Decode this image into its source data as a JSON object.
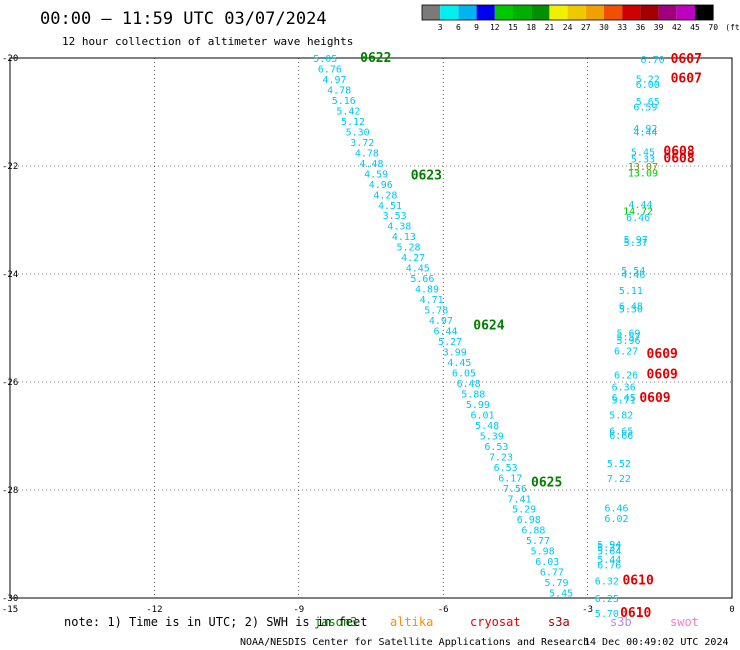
{
  "header": {
    "title": "00:00 — 11:59 UTC 03/07/2024",
    "subtitle": "12 hour collection of altimeter wave heights"
  },
  "colorbar": {
    "labels": [
      "3",
      "6",
      "9",
      "12",
      "15",
      "18",
      "21",
      "24",
      "27",
      "30",
      "33",
      "36",
      "39",
      "42",
      "45",
      "70"
    ],
    "unit": "(ft)",
    "colors": [
      "#7a7a7a",
      "#00f0f0",
      "#00b4f0",
      "#0000f0",
      "#00c800",
      "#00b000",
      "#009000",
      "#f0f000",
      "#f0c800",
      "#f0a000",
      "#f05000",
      "#d00000",
      "#a00000",
      "#a00080",
      "#c000c0",
      "#000000"
    ]
  },
  "footer": {
    "note": "note: 1) Time is in UTC; 2) SWH is in feet",
    "satellites": [
      {
        "name": "jason3",
        "color": "#008000"
      },
      {
        "name": "altika",
        "color": "#ff8c00"
      },
      {
        "name": "cryosat",
        "color": "#e00000"
      },
      {
        "name": "s3a",
        "color": "#a00000"
      },
      {
        "name": "s3b",
        "color": "#b48cdc"
      },
      {
        "name": "swot",
        "color": "#ff78c8"
      }
    ],
    "credit": "NOAA/NESDIS Center for Satellite Applications and Research",
    "generated": "14 Dec 00:49:02 UTC 2024"
  },
  "chart_data": {
    "type": "scatter",
    "xlim": [
      -15,
      0
    ],
    "ylim": [
      -30,
      -20
    ],
    "xticks": [
      -15,
      -12,
      -9,
      -6,
      -3,
      0
    ],
    "yticks": [
      -20,
      -22,
      -24,
      -26,
      -28,
      -30
    ],
    "xtick_labels": [
      "-15",
      "-12",
      "-9",
      "-6",
      "-3",
      "0"
    ],
    "ytick_labels": [
      "-20",
      "-22",
      "-24",
      "-26",
      "-28",
      "-30"
    ],
    "grid": true,
    "series": [
      {
        "name": "jason3",
        "color": "#00c8f0",
        "x_start": -8.45,
        "x_end": -3.55,
        "y_start": -20.0,
        "y_end": -29.9,
        "values": [
          "5.05",
          "6.76",
          "4.97",
          "4.78",
          "5.16",
          "5.42",
          "5.12",
          "5.30",
          "3.72",
          "4.78",
          "4.48",
          "4.59",
          "4.96",
          "4.28",
          "4.51",
          "3.53",
          "4.38",
          "4.13",
          "5.28",
          "4.27",
          "4.45",
          "5.66",
          "4.89",
          "4.71",
          "5.78",
          "4.97",
          "6.44",
          "5.27",
          "3.99",
          "4.45",
          "6.05",
          "6.48",
          "5.88",
          "5.99",
          "6.01",
          "5.48",
          "5.39",
          "6.53",
          "7.23",
          "6.53",
          "6.17",
          "7.56",
          "7.41",
          "5.29",
          "6.98",
          "6.88",
          "5.77",
          "5.98",
          "6.03",
          "6.77",
          "5.79",
          "5.45"
        ]
      },
      {
        "name": "cryosat",
        "color": "#00c8f0",
        "points": [
          {
            "x": -1.65,
            "y": -20.02,
            "v": "6.70"
          },
          {
            "x": -1.75,
            "y": -20.38,
            "v": "5.22"
          },
          {
            "x": -1.75,
            "y": -20.48,
            "v": "6.00"
          },
          {
            "x": -1.75,
            "y": -20.8,
            "v": "5.65"
          },
          {
            "x": -1.8,
            "y": -20.9,
            "v": "6.59"
          },
          {
            "x": -1.8,
            "y": -21.3,
            "v": "4.92"
          },
          {
            "x": -1.8,
            "y": -21.36,
            "v": "4.44"
          },
          {
            "x": -1.85,
            "y": -21.73,
            "v": "5.45"
          },
          {
            "x": -1.85,
            "y": -21.86,
            "v": "5.33"
          },
          {
            "x": -1.85,
            "y": -22.0,
            "v": "13.07"
          },
          {
            "x": -1.85,
            "y": -22.12,
            "v": "13.09"
          },
          {
            "x": -1.9,
            "y": -22.7,
            "v": "4.44"
          },
          {
            "x": -1.95,
            "y": -22.82,
            "v": "14.72"
          },
          {
            "x": -1.95,
            "y": -22.94,
            "v": "6.46"
          },
          {
            "x": -2.0,
            "y": -23.35,
            "v": "5.97"
          },
          {
            "x": -2.0,
            "y": -23.41,
            "v": "5.37"
          },
          {
            "x": -2.05,
            "y": -23.93,
            "v": "5.54"
          },
          {
            "x": -2.05,
            "y": -24.0,
            "v": "4.46"
          },
          {
            "x": -2.1,
            "y": -24.3,
            "v": "5.11"
          },
          {
            "x": -2.1,
            "y": -24.58,
            "v": "6.48"
          },
          {
            "x": -2.1,
            "y": -24.64,
            "v": "5.30"
          },
          {
            "x": -2.15,
            "y": -25.08,
            "v": "5.69"
          },
          {
            "x": -2.15,
            "y": -25.16,
            "v": "5.57"
          },
          {
            "x": -2.15,
            "y": -25.22,
            "v": "5.96"
          },
          {
            "x": -2.2,
            "y": -25.42,
            "v": "6.27"
          },
          {
            "x": -2.2,
            "y": -25.86,
            "v": "6.26"
          },
          {
            "x": -2.25,
            "y": -26.08,
            "v": "6.36"
          },
          {
            "x": -2.25,
            "y": -26.28,
            "v": "6.45"
          },
          {
            "x": -2.25,
            "y": -26.32,
            "v": "5.71"
          },
          {
            "x": -2.3,
            "y": -26.6,
            "v": "5.82"
          },
          {
            "x": -2.3,
            "y": -26.9,
            "v": "6.65"
          },
          {
            "x": -2.3,
            "y": -26.98,
            "v": "6.66"
          },
          {
            "x": -2.35,
            "y": -27.5,
            "v": "5.52"
          },
          {
            "x": -2.35,
            "y": -27.78,
            "v": "7.22"
          },
          {
            "x": -2.4,
            "y": -28.32,
            "v": "6.46"
          },
          {
            "x": -2.4,
            "y": -28.52,
            "v": "6.02"
          },
          {
            "x": -2.55,
            "y": -29.0,
            "v": "5.94"
          },
          {
            "x": -2.55,
            "y": -29.06,
            "v": "5.37"
          },
          {
            "x": -2.55,
            "y": -29.12,
            "v": "5.64"
          },
          {
            "x": -2.55,
            "y": -29.28,
            "v": "5.44"
          },
          {
            "x": -2.55,
            "y": -29.38,
            "v": "6.76"
          },
          {
            "x": -2.6,
            "y": -29.68,
            "v": "6.32"
          },
          {
            "x": -2.6,
            "y": -30.0,
            "v": "6.25"
          },
          {
            "x": -2.6,
            "y": -30.28,
            "v": "5.70"
          }
        ]
      }
    ],
    "colored_overrides": [
      {
        "index_series": "cryosat",
        "v": "13.07",
        "color": "#8a8a00"
      },
      {
        "index_series": "cryosat",
        "v": "13.09",
        "color": "#00c800"
      },
      {
        "index_series": "cryosat",
        "v": "14.72",
        "color": "#00c800"
      }
    ],
    "time_tags": [
      {
        "label": "0622",
        "x": -7.4,
        "y": -20.0,
        "color": "#008000"
      },
      {
        "label": "0623",
        "x": -6.35,
        "y": -22.18,
        "color": "#008000"
      },
      {
        "label": "0624",
        "x": -5.05,
        "y": -24.95,
        "color": "#008000"
      },
      {
        "label": "0625",
        "x": -3.85,
        "y": -27.86,
        "color": "#008000"
      },
      {
        "label": "0607",
        "x": -0.95,
        "y": -20.02,
        "color": "#e00000"
      },
      {
        "label": "0607",
        "x": -0.95,
        "y": -20.38,
        "color": "#e00000"
      },
      {
        "label": "0608",
        "x": -1.1,
        "y": -21.73,
        "color": "#e00000"
      },
      {
        "label": "0608",
        "x": -1.1,
        "y": -21.86,
        "color": "#e00000"
      },
      {
        "label": "0609",
        "x": -1.45,
        "y": -25.48,
        "color": "#e00000"
      },
      {
        "label": "0609",
        "x": -1.45,
        "y": -25.86,
        "color": "#e00000"
      },
      {
        "label": "0609",
        "x": -1.6,
        "y": -26.3,
        "color": "#e00000"
      },
      {
        "label": "0610",
        "x": -1.95,
        "y": -29.68,
        "color": "#e00000"
      },
      {
        "label": "0610",
        "x": -2.0,
        "y": -30.28,
        "color": "#e00000"
      }
    ]
  }
}
